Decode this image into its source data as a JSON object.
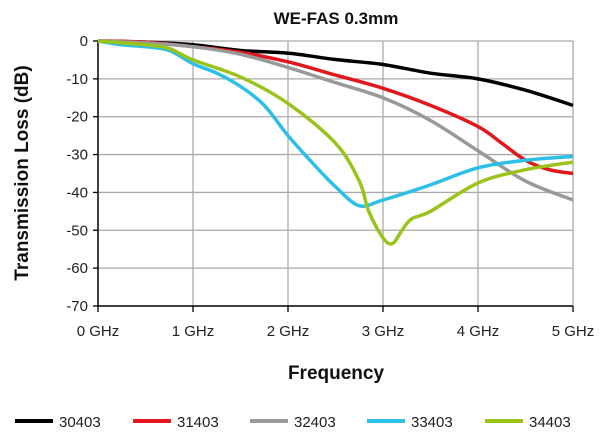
{
  "chart_data": {
    "type": "line",
    "title": "WE-FAS 0.3mm",
    "xlabel": "Frequency",
    "ylabel": "Transmission Loss (dB)",
    "xlim": [
      0,
      5
    ],
    "ylim": [
      -70,
      0
    ],
    "xticks": [
      0,
      1,
      2,
      3,
      4,
      5
    ],
    "xtick_labels": [
      "0 GHz",
      "1 GHz",
      "2 GHz",
      "3 GHz",
      "4 GHz",
      "5 GHz"
    ],
    "yticks": [
      0,
      -10,
      -20,
      -30,
      -40,
      -50,
      -60,
      -70
    ],
    "ytick_labels": [
      "0",
      "-10",
      "-20",
      "-30",
      "-40",
      "-50",
      "-60",
      "-70"
    ],
    "grid": true,
    "legend_position": "bottom",
    "series": [
      {
        "name": "30403",
        "color": "#000000",
        "x": [
          0,
          0.5,
          1,
          1.5,
          2,
          2.5,
          3,
          3.5,
          4,
          4.5,
          5
        ],
        "y": [
          0,
          -0.3,
          -1,
          -2.5,
          -3.2,
          -4.9,
          -6.2,
          -8.5,
          -10,
          -13,
          -17
        ]
      },
      {
        "name": "31403",
        "color": "#e2161b",
        "x": [
          0,
          0.5,
          1,
          1.5,
          2,
          2.5,
          3,
          3.5,
          4,
          4.25,
          4.5,
          4.75,
          5
        ],
        "y": [
          0,
          -0.3,
          -1.5,
          -3,
          -5.5,
          -9,
          -12.5,
          -17,
          -22.6,
          -27,
          -31.5,
          -34,
          -35
        ]
      },
      {
        "name": "32403",
        "color": "#999999",
        "x": [
          0,
          0.5,
          1,
          1.5,
          2,
          2.5,
          3,
          3.5,
          4,
          4.5,
          5
        ],
        "y": [
          0,
          -0.5,
          -1.5,
          -3.5,
          -7,
          -11,
          -15,
          -21,
          -29,
          -37,
          -42
        ]
      },
      {
        "name": "33403",
        "color": "#2cc0e8",
        "x": [
          0,
          0.25,
          0.5,
          0.75,
          1,
          1.25,
          1.5,
          1.75,
          2,
          2.25,
          2.5,
          2.75,
          3,
          3.5,
          4,
          4.5,
          5
        ],
        "y": [
          0,
          -1,
          -1.5,
          -2.5,
          -6,
          -8.5,
          -12,
          -17,
          -25,
          -32,
          -38.5,
          -43.5,
          -42,
          -38,
          -33.5,
          -31.5,
          -30.5
        ]
      },
      {
        "name": "34403",
        "color": "#9ac31c",
        "x": [
          0,
          0.5,
          0.75,
          1,
          1.5,
          2,
          2.5,
          2.75,
          2.85,
          3,
          3.1,
          3.2,
          3.3,
          3.5,
          4,
          4.5,
          5
        ],
        "y": [
          0,
          -1,
          -2,
          -5,
          -9.5,
          -16.5,
          -27,
          -37,
          -45,
          -52,
          -53.5,
          -50,
          -47,
          -45,
          -37.5,
          -34,
          -32
        ]
      }
    ]
  }
}
